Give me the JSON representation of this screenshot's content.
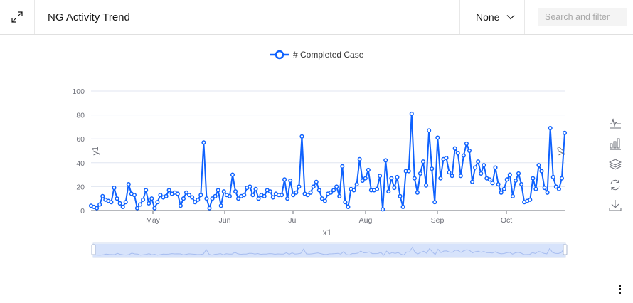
{
  "header": {
    "title": "NG Activity Trend",
    "dropdown_value": "None",
    "search_placeholder": "Search and filter",
    "search_value": ""
  },
  "icons": {
    "expand": "expand-icon",
    "chevron": "chevron-down-icon",
    "toolbox": [
      "line-chart-icon",
      "bar-chart-icon",
      "stack-icon",
      "restore-icon",
      "download-icon"
    ],
    "overflow_menu": "overflow-menu-vertical-icon"
  },
  "colors": {
    "series": "#0f62fe",
    "grid": "#e0e6f1",
    "axis": "#6e7079",
    "dataZoom_fill": "#d7e3fb"
  },
  "chart_data": {
    "type": "line",
    "title": "NG Activity Trend",
    "legend": [
      "# Completed Case"
    ],
    "legend_position": "top",
    "xlabel": "x1",
    "ylabel": "y1",
    "y2label": "y2",
    "ylim": [
      0,
      100
    ],
    "yticks": [
      0,
      20,
      40,
      60,
      80,
      100
    ],
    "xticks": [
      "May",
      "Jun",
      "Jul",
      "Aug",
      "Sep",
      "Oct"
    ],
    "grid": true,
    "series": [
      {
        "name": "# Completed Case",
        "values": [
          4,
          3,
          2,
          5,
          12,
          9,
          8,
          7,
          19,
          10,
          6,
          3,
          7,
          22,
          14,
          13,
          2,
          5,
          9,
          17,
          6,
          10,
          2,
          7,
          13,
          11,
          12,
          17,
          14,
          15,
          14,
          4,
          10,
          15,
          13,
          11,
          7,
          9,
          13,
          57,
          10,
          2,
          10,
          12,
          17,
          4,
          16,
          13,
          12,
          30,
          16,
          10,
          12,
          13,
          19,
          20,
          13,
          18,
          10,
          13,
          12,
          17,
          16,
          11,
          14,
          13,
          13,
          26,
          10,
          25,
          13,
          15,
          20,
          62,
          14,
          13,
          15,
          20,
          24,
          17,
          10,
          8,
          14,
          15,
          17,
          20,
          12,
          37,
          7,
          3,
          18,
          17,
          22,
          43,
          25,
          27,
          34,
          17,
          17,
          18,
          29,
          1,
          42,
          16,
          27,
          19,
          28,
          12,
          3,
          33,
          33,
          81,
          27,
          15,
          31,
          41,
          21,
          67,
          35,
          7,
          61,
          27,
          43,
          44,
          32,
          29,
          52,
          48,
          29,
          46,
          56,
          50,
          24,
          36,
          41,
          31,
          38,
          27,
          26,
          23,
          36,
          22,
          15,
          18,
          26,
          30,
          12,
          25,
          31,
          22,
          7,
          8,
          9,
          27,
          18,
          38,
          33,
          19,
          15,
          69,
          28,
          20,
          18,
          27,
          65
        ]
      }
    ],
    "x_range": [
      "mid-April",
      "late October"
    ],
    "data_zoom": {
      "start_percent": 0,
      "end_percent": 100
    }
  }
}
